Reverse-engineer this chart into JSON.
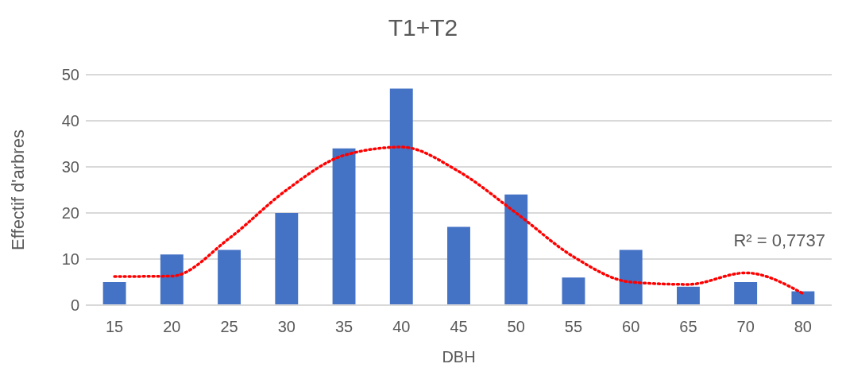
{
  "chart_data": {
    "type": "bar",
    "title": "T1+T2",
    "xlabel": "DBH",
    "ylabel": "Effectif d'arbres",
    "categories": [
      "15",
      "20",
      "25",
      "30",
      "35",
      "40",
      "45",
      "50",
      "55",
      "60",
      "65",
      "70",
      "80"
    ],
    "series": [
      {
        "color": "#4472c4",
        "values": [
          5,
          11,
          12,
          20,
          34,
          47,
          17,
          24,
          6,
          12,
          4,
          5,
          3
        ]
      },
      {
        "type": "line",
        "color": "#ff0000",
        "line_style": "dotted",
        "x": [
          "15",
          "20",
          "25",
          "30",
          "35",
          "40",
          "45",
          "50",
          "55",
          "60",
          "65",
          "70",
          "80"
        ],
        "values": [
          6.2,
          6.3,
          14.5,
          25,
          32.5,
          34.3,
          29,
          20,
          10.5,
          5,
          4.5,
          7,
          2.5
        ]
      }
    ],
    "ylim": [
      0,
      50
    ],
    "yticks": [
      0,
      10,
      20,
      30,
      40,
      50
    ],
    "grid": "y",
    "annotations": [
      "R² = 0,7737"
    ]
  }
}
